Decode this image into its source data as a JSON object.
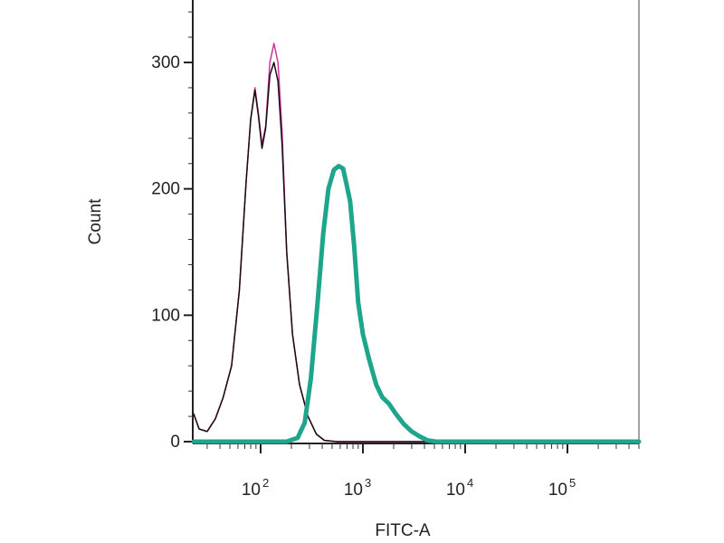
{
  "chart_data": {
    "type": "line",
    "xlabel": "FITC-A",
    "ylabel": "Count",
    "xscale": "log",
    "xlim": [
      20,
      7000000
    ],
    "ylim": [
      -8,
      345
    ],
    "grid": false,
    "x_ticks": [
      {
        "value": 100,
        "base": "10",
        "exp": "2"
      },
      {
        "value": 1000,
        "base": "10",
        "exp": "3"
      },
      {
        "value": 10000,
        "base": "10",
        "exp": "4"
      },
      {
        "value": 100000,
        "base": "10",
        "exp": "5"
      }
    ],
    "y_ticks": [
      {
        "value": 0,
        "label": "0"
      },
      {
        "value": 100,
        "label": "100"
      },
      {
        "value": 200,
        "label": "200"
      },
      {
        "value": 300,
        "label": "300"
      }
    ],
    "series": [
      {
        "color": "#cc3399",
        "width": 1.5,
        "points": [
          [
            20,
            22
          ],
          [
            25,
            10
          ],
          [
            30,
            8
          ],
          [
            36,
            18
          ],
          [
            43,
            35
          ],
          [
            52,
            60
          ],
          [
            62,
            120
          ],
          [
            72,
            205
          ],
          [
            80,
            255
          ],
          [
            88,
            280
          ],
          [
            95,
            260
          ],
          [
            103,
            235
          ],
          [
            112,
            250
          ],
          [
            123,
            300
          ],
          [
            135,
            315
          ],
          [
            148,
            300
          ],
          [
            162,
            245
          ],
          [
            180,
            150
          ],
          [
            205,
            85
          ],
          [
            240,
            45
          ],
          [
            290,
            20
          ],
          [
            350,
            6
          ],
          [
            420,
            1
          ],
          [
            560,
            0
          ],
          [
            7000000,
            0
          ]
        ]
      },
      {
        "color": "#1a0a14",
        "width": 1.5,
        "points": [
          [
            20,
            22
          ],
          [
            25,
            10
          ],
          [
            30,
            8
          ],
          [
            36,
            18
          ],
          [
            43,
            35
          ],
          [
            52,
            60
          ],
          [
            62,
            120
          ],
          [
            72,
            205
          ],
          [
            80,
            255
          ],
          [
            88,
            278
          ],
          [
            95,
            258
          ],
          [
            103,
            232
          ],
          [
            112,
            248
          ],
          [
            123,
            290
          ],
          [
            135,
            300
          ],
          [
            148,
            285
          ],
          [
            162,
            235
          ],
          [
            180,
            150
          ],
          [
            205,
            85
          ],
          [
            240,
            45
          ],
          [
            290,
            20
          ],
          [
            350,
            6
          ],
          [
            420,
            1
          ],
          [
            560,
            0
          ],
          [
            7000000,
            0
          ]
        ]
      },
      {
        "color": "#1ea58b",
        "width": 5,
        "points": [
          [
            20,
            0
          ],
          [
            180,
            0
          ],
          [
            230,
            3
          ],
          [
            270,
            15
          ],
          [
            310,
            50
          ],
          [
            360,
            110
          ],
          [
            410,
            165
          ],
          [
            460,
            200
          ],
          [
            520,
            215
          ],
          [
            580,
            218
          ],
          [
            640,
            216
          ],
          [
            690,
            204
          ],
          [
            750,
            190
          ],
          [
            820,
            155
          ],
          [
            900,
            110
          ],
          [
            1000,
            85
          ],
          [
            1150,
            65
          ],
          [
            1350,
            45
          ],
          [
            1550,
            35
          ],
          [
            1800,
            30
          ],
          [
            2100,
            22
          ],
          [
            2500,
            14
          ],
          [
            3000,
            8
          ],
          [
            3600,
            4
          ],
          [
            4300,
            1
          ],
          [
            5200,
            0
          ],
          [
            7000000,
            0
          ]
        ]
      }
    ]
  }
}
